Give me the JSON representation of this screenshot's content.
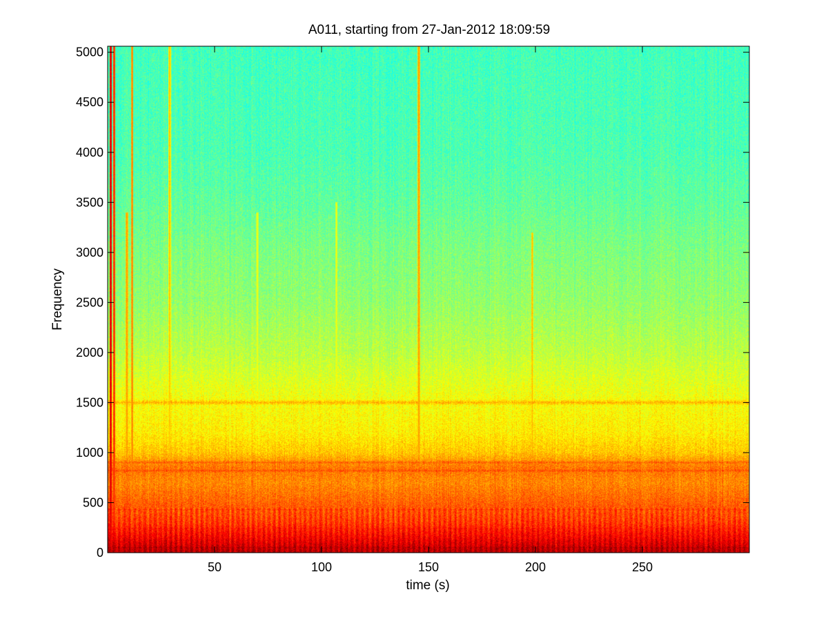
{
  "chart_data": {
    "type": "heatmap",
    "title": "A011, starting from 27-Jan-2012 18:09:59",
    "xlabel": "time (s)",
    "ylabel": "Frequency",
    "xlim": [
      0,
      300
    ],
    "ylim": [
      0,
      5060
    ],
    "xticks": [
      {
        "value": 50,
        "label": "50"
      },
      {
        "value": 100,
        "label": "100"
      },
      {
        "value": 150,
        "label": "150"
      },
      {
        "value": 200,
        "label": "200"
      },
      {
        "value": 250,
        "label": "250"
      }
    ],
    "yticks": [
      {
        "value": 0,
        "label": "0"
      },
      {
        "value": 500,
        "label": "500"
      },
      {
        "value": 1000,
        "label": "1000"
      },
      {
        "value": 1500,
        "label": "1500"
      },
      {
        "value": 2000,
        "label": "2000"
      },
      {
        "value": 2500,
        "label": "2500"
      },
      {
        "value": 3000,
        "label": "3000"
      },
      {
        "value": 3500,
        "label": "3500"
      },
      {
        "value": 4000,
        "label": "4000"
      },
      {
        "value": 4500,
        "label": "4500"
      },
      {
        "value": 5000,
        "label": "5000"
      }
    ],
    "colormap": "jet",
    "grid": false,
    "legend": "none",
    "intensity_profile": [
      {
        "frequency": 0,
        "level": 0.95
      },
      {
        "frequency": 150,
        "level": 0.88
      },
      {
        "frequency": 300,
        "level": 0.82
      },
      {
        "frequency": 500,
        "level": 0.78
      },
      {
        "frequency": 700,
        "level": 0.74
      },
      {
        "frequency": 850,
        "level": 0.76
      },
      {
        "frequency": 1000,
        "level": 0.68
      },
      {
        "frequency": 1200,
        "level": 0.64
      },
      {
        "frequency": 1500,
        "level": 0.62
      },
      {
        "frequency": 2000,
        "level": 0.56
      },
      {
        "frequency": 2500,
        "level": 0.52
      },
      {
        "frequency": 3000,
        "level": 0.5
      },
      {
        "frequency": 3500,
        "level": 0.47
      },
      {
        "frequency": 4000,
        "level": 0.45
      },
      {
        "frequency": 5060,
        "level": 0.44
      }
    ],
    "horizontal_bands": [
      {
        "frequency": 50,
        "level": 0.95
      },
      {
        "frequency": 120,
        "level": 0.9
      },
      {
        "frequency": 240,
        "level": 0.86
      },
      {
        "frequency": 430,
        "level": 0.82
      },
      {
        "frequency": 820,
        "level": 0.8
      },
      {
        "frequency": 900,
        "level": 0.78
      },
      {
        "frequency": 1500,
        "level": 0.7
      }
    ],
    "vertical_events": [
      {
        "time": 1.5,
        "fmax": 5060,
        "level": 0.92
      },
      {
        "time": 3,
        "fmax": 5060,
        "level": 0.85
      },
      {
        "time": 9,
        "fmax": 3400,
        "level": 0.74
      },
      {
        "time": 11.5,
        "fmax": 5060,
        "level": 0.76
      },
      {
        "time": 29,
        "fmax": 5060,
        "level": 0.7
      },
      {
        "time": 70,
        "fmax": 3400,
        "level": 0.63
      },
      {
        "time": 107,
        "fmax": 3500,
        "level": 0.63
      },
      {
        "time": 145.5,
        "fmax": 5060,
        "level": 0.74
      },
      {
        "time": 198.5,
        "fmax": 3200,
        "level": 0.7
      }
    ]
  }
}
